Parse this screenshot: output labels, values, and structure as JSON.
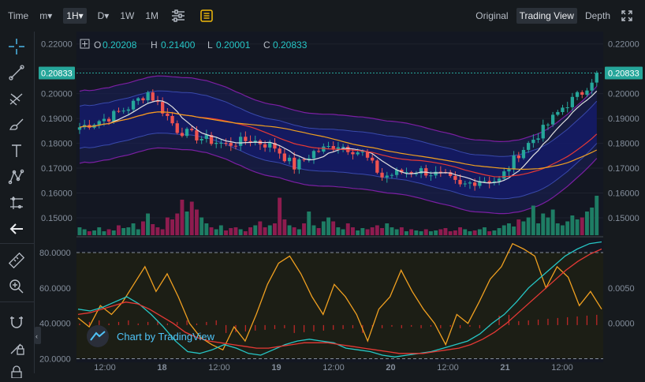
{
  "toolbar": {
    "left": [
      {
        "id": "time",
        "label": "Time"
      },
      {
        "id": "minutes",
        "label": "m▾"
      },
      {
        "id": "hour",
        "label": "1H▾",
        "active": true
      },
      {
        "id": "day",
        "label": "D▾"
      },
      {
        "id": "week",
        "label": "1W"
      },
      {
        "id": "month",
        "label": "1M"
      }
    ],
    "right": [
      {
        "id": "original",
        "label": "Original"
      },
      {
        "id": "tradingview",
        "label": "Trading View",
        "active": true
      },
      {
        "id": "depth",
        "label": "Depth"
      }
    ]
  },
  "sidebar": {
    "tools": [
      "crosshair-icon",
      "trend-line-icon",
      "fib-icon",
      "brush-icon",
      "text-icon",
      "pattern-icon",
      "measure-icon",
      "back-arrow-icon",
      "ruler-icon",
      "zoom-icon",
      "magnet-icon",
      "lock-pencil-icon",
      "lock-icon"
    ]
  },
  "ohlc": {
    "o_label": "O",
    "o": "0.20208",
    "h_label": "H",
    "h": "0.21400",
    "l_label": "L",
    "l": "0.20001",
    "c_label": "C",
    "c": "0.20833"
  },
  "watermark": "Chart by TradingView",
  "colors": {
    "up": "#26a69a",
    "down": "#ef5350",
    "accent": "#f0b90b",
    "line": "#4fc3f7"
  },
  "chart_data": [
    {
      "type": "candlestick",
      "title": "",
      "ylim": [
        0.143,
        0.225
      ],
      "y_ticks": [
        "0.22000",
        "0.21000",
        "0.20000",
        "0.19000",
        "0.18000",
        "0.17000",
        "0.16000",
        "0.15000"
      ],
      "last_price": "0.20833",
      "x_ticks": [
        "12:00",
        "18",
        "12:00",
        "19",
        "12:00",
        "20",
        "12:00",
        "21",
        "12:00"
      ],
      "close_path": [
        [
          0,
          0.1865
        ],
        [
          6,
          0.1905
        ],
        [
          10,
          0.1945
        ],
        [
          14,
          0.2005
        ],
        [
          16,
          0.196
        ],
        [
          20,
          0.1855
        ],
        [
          25,
          0.182
        ],
        [
          30,
          0.1795
        ],
        [
          35,
          0.1815
        ],
        [
          40,
          0.1785
        ],
        [
          44,
          0.1705
        ],
        [
          48,
          0.1765
        ],
        [
          53,
          0.1795
        ],
        [
          58,
          0.176
        ],
        [
          62,
          0.1665
        ],
        [
          66,
          0.1685
        ],
        [
          70,
          0.169
        ],
        [
          75,
          0.1665
        ],
        [
          78,
          0.1625
        ],
        [
          82,
          0.1655
        ],
        [
          86,
          0.165
        ],
        [
          90,
          0.176
        ],
        [
          95,
          0.1855
        ],
        [
          99,
          0.1945
        ],
        [
          103,
          0.2005
        ],
        [
          106,
          0.2085
        ]
      ],
      "volume_relative": [
        0.2,
        0.15,
        0.1,
        0.12,
        0.2,
        0.1,
        0.15,
        0.12,
        0.25,
        0.18,
        0.2,
        0.3,
        0.15,
        0.35,
        0.55,
        0.28,
        0.2,
        0.15,
        0.45,
        0.4,
        0.55,
        0.9,
        0.6,
        0.85,
        0.65,
        0.45,
        0.3,
        0.2,
        0.15,
        0.25,
        0.12,
        0.18,
        0.2,
        0.15,
        0.1,
        0.2,
        0.25,
        0.35,
        0.2,
        0.25,
        0.3,
        0.95,
        0.4,
        0.25,
        0.2,
        0.15,
        0.3,
        0.6,
        0.25,
        0.18,
        0.35,
        0.45,
        0.35,
        0.2,
        0.15,
        0.3,
        0.2,
        0.12,
        0.18,
        0.15,
        0.2,
        0.25,
        0.18,
        0.3,
        0.2,
        0.15,
        0.2,
        0.1,
        0.15,
        0.12,
        0.1,
        0.15,
        0.1,
        0.12,
        0.15,
        0.18,
        0.1,
        0.12,
        0.2,
        0.15,
        0.1,
        0.12,
        0.15,
        0.2,
        0.1,
        0.12,
        0.18,
        0.25,
        0.3,
        0.22,
        0.4,
        0.35,
        0.45,
        0.75,
        0.3,
        0.55,
        0.45,
        0.65,
        0.3,
        0.25,
        0.35,
        0.5,
        0.4,
        0.45,
        0.6,
        0.7,
        1.0
      ]
    },
    {
      "type": "line",
      "title": "",
      "ylim": [
        18,
        88
      ],
      "y_ticks": [
        "80.0000",
        "60.0000",
        "40.0000",
        "20.0000"
      ],
      "right_ticks": [
        "0.0050",
        "0.0000"
      ],
      "series": [
        {
          "color": "#f0a020",
          "values": [
            43,
            38,
            50,
            45,
            52,
            62,
            72,
            58,
            68,
            55,
            40,
            32,
            28,
            25,
            38,
            30,
            45,
            62,
            74,
            78,
            68,
            55,
            45,
            62,
            55,
            45,
            30,
            48,
            55,
            70,
            58,
            48,
            40,
            28,
            45,
            40,
            52,
            65,
            72,
            85,
            82,
            78,
            60,
            72,
            66,
            50,
            58,
            48
          ]
        },
        {
          "color": "#26c6c6",
          "values": [
            48,
            47,
            49,
            52,
            55,
            51,
            45,
            38,
            30,
            24,
            23,
            25,
            28,
            26,
            23,
            22,
            25,
            28,
            30,
            31,
            30,
            29,
            26,
            25,
            24,
            22,
            21,
            22,
            23,
            24,
            26,
            28,
            30,
            34,
            40,
            45,
            52,
            60,
            66,
            72,
            78,
            82,
            85,
            86
          ]
        },
        {
          "color": "#e53935",
          "values": [
            45,
            46,
            48,
            50,
            52,
            51,
            48,
            44,
            40,
            35,
            32,
            30,
            29,
            28,
            27,
            26,
            26,
            27,
            28,
            29,
            29,
            29,
            28,
            27,
            26,
            25,
            24,
            23,
            23,
            23,
            24,
            25,
            26,
            28,
            31,
            35,
            40,
            46,
            52,
            58,
            64,
            70,
            75,
            79,
            82
          ]
        }
      ]
    }
  ]
}
